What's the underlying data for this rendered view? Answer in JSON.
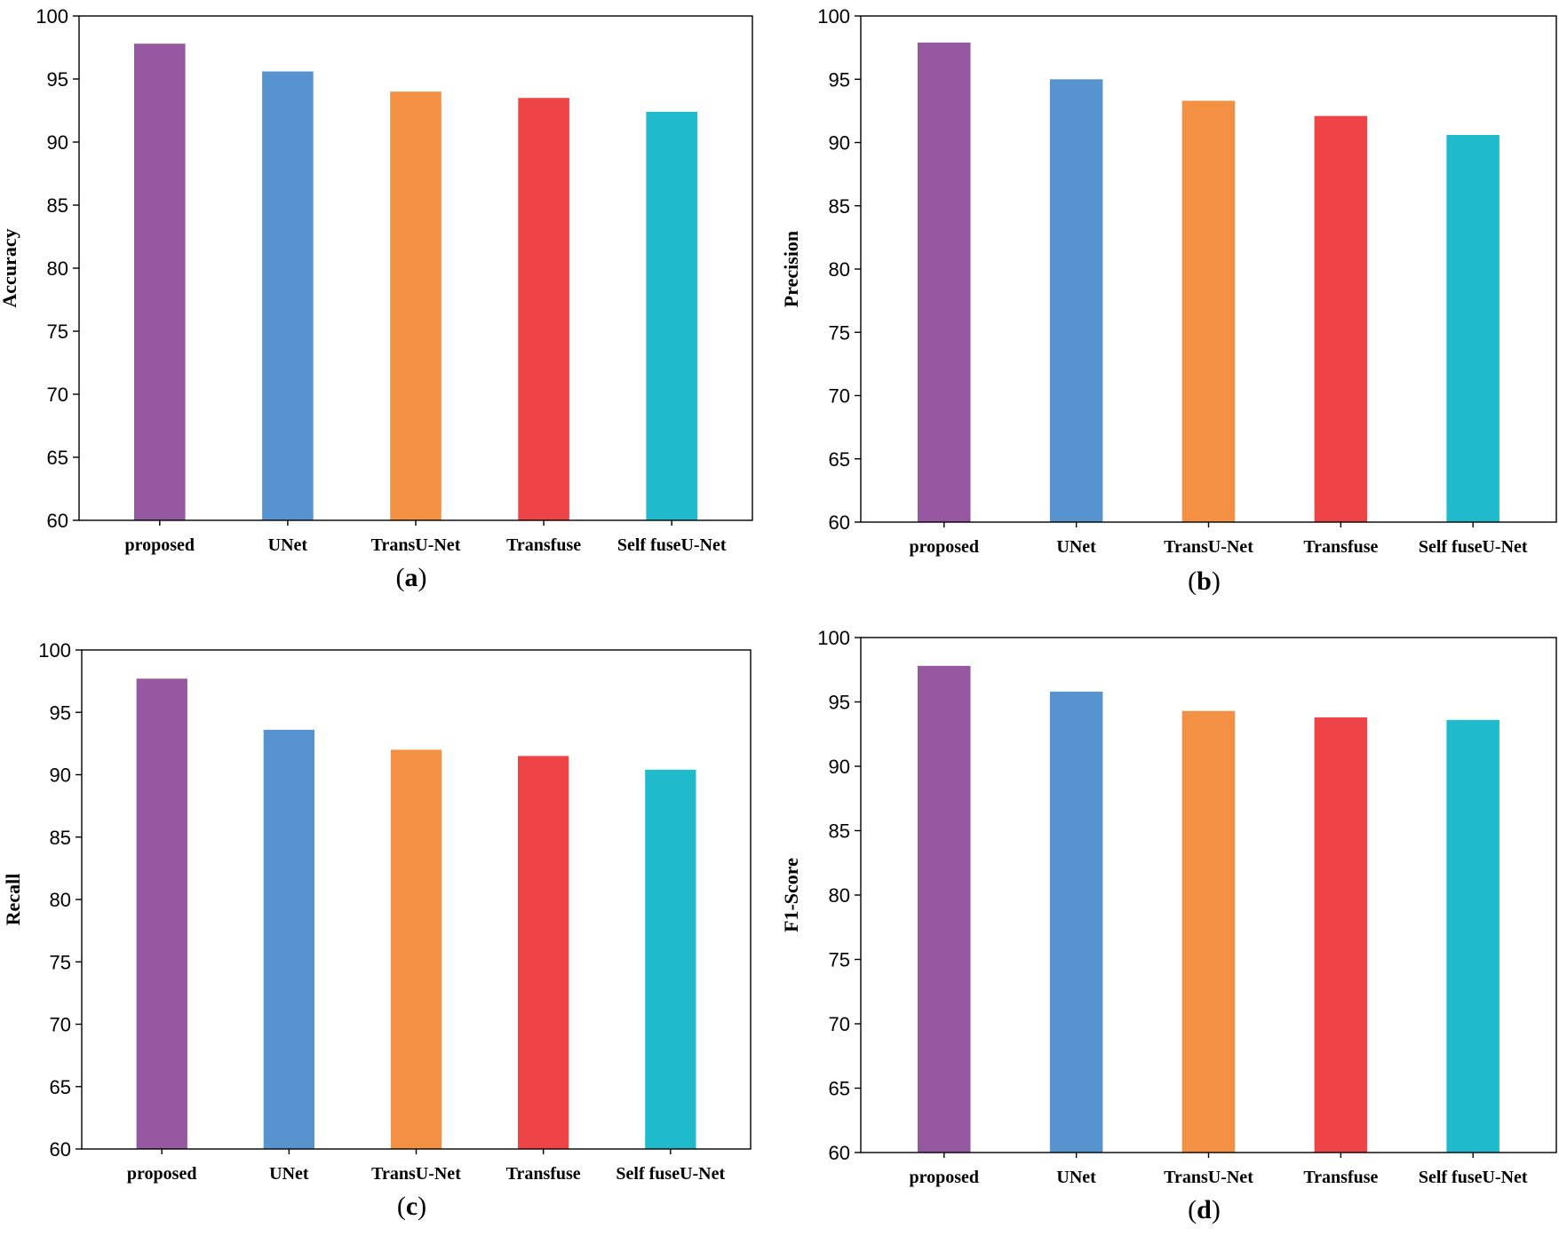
{
  "figure": {
    "categories": [
      "proposed",
      "UNet",
      "TransU-Net",
      "Transfuse",
      "Self fuseU-Net"
    ],
    "colors": [
      "#9558A1",
      "#5793CE",
      "#F39043",
      "#EE4447",
      "#1FBBCC"
    ]
  },
  "chart_data": [
    {
      "type": "bar",
      "panel": "(a)",
      "panel_letter": "a",
      "ylabel": "Accuracy",
      "xlabel": "",
      "ylim": [
        60,
        100
      ],
      "yticks": [
        60,
        65,
        70,
        75,
        80,
        85,
        90,
        95,
        100
      ],
      "categories": [
        "proposed",
        "UNet",
        "TransU-Net",
        "Transfuse",
        "Self fuseU-Net"
      ],
      "values": [
        97.8,
        95.6,
        94.0,
        93.5,
        92.4
      ]
    },
    {
      "type": "bar",
      "panel": "(b)",
      "panel_letter": "b",
      "ylabel": "Precision",
      "xlabel": "",
      "ylim": [
        60,
        100
      ],
      "yticks": [
        60,
        65,
        70,
        75,
        80,
        85,
        90,
        95,
        100
      ],
      "categories": [
        "proposed",
        "UNet",
        "TransU-Net",
        "Transfuse",
        "Self fuseU-Net"
      ],
      "values": [
        97.9,
        95.0,
        93.3,
        92.1,
        90.6
      ]
    },
    {
      "type": "bar",
      "panel": "(c)",
      "panel_letter": "c",
      "ylabel": "Recall",
      "xlabel": "",
      "ylim": [
        60,
        100
      ],
      "yticks": [
        60,
        65,
        70,
        75,
        80,
        85,
        90,
        95,
        100
      ],
      "categories": [
        "proposed",
        "UNet",
        "TransU-Net",
        "Transfuse",
        "Self fuseU-Net"
      ],
      "values": [
        97.7,
        93.6,
        92.0,
        91.5,
        90.4
      ]
    },
    {
      "type": "bar",
      "panel": "(d)",
      "panel_letter": "d",
      "ylabel": "F1-Score",
      "xlabel": "",
      "ylim": [
        60,
        100
      ],
      "yticks": [
        60,
        65,
        70,
        75,
        80,
        85,
        90,
        95,
        100
      ],
      "categories": [
        "proposed",
        "UNet",
        "TransU-Net",
        "Transfuse",
        "Self fuseU-Net"
      ],
      "values": [
        97.8,
        95.8,
        94.3,
        93.8,
        93.6
      ]
    }
  ]
}
